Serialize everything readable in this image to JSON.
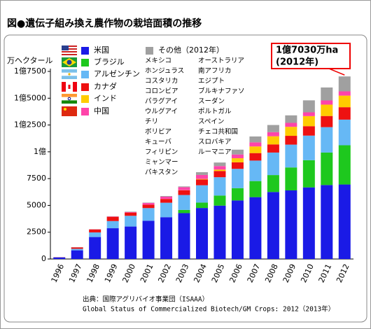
{
  "chart_data": {
    "type": "stacked-bar",
    "title": "図●遺伝子組み換え農作物の栽培面積の推移",
    "y_label": "万ヘクタール",
    "categories": [
      "1996",
      "1997",
      "1998",
      "1999",
      "2000",
      "2001",
      "2002",
      "2003",
      "2004",
      "2005",
      "2006",
      "2007",
      "2008",
      "2009",
      "2010",
      "2011",
      "2012"
    ],
    "series": [
      {
        "name": "米国",
        "color": "#1a1ae6",
        "values": [
          150,
          810,
          2050,
          2870,
          3030,
          3570,
          3900,
          4280,
          4760,
          4980,
          5460,
          5770,
          6250,
          6400,
          6680,
          6900,
          6950
        ]
      },
      {
        "name": "ブラジル",
        "color": "#1ec81e",
        "values": [
          0,
          0,
          0,
          0,
          0,
          0,
          0,
          300,
          500,
          940,
          1150,
          1500,
          1580,
          2140,
          2540,
          3030,
          3660
        ]
      },
      {
        "name": "アルゼンチン",
        "color": "#66b8f5",
        "values": [
          10,
          140,
          430,
          670,
          1000,
          1180,
          1350,
          1390,
          1620,
          1710,
          1800,
          1910,
          2100,
          2130,
          2290,
          2370,
          2390
        ]
      },
      {
        "name": "カナダ",
        "color": "#ee1111",
        "values": [
          14,
          130,
          280,
          400,
          300,
          320,
          350,
          440,
          540,
          580,
          610,
          700,
          760,
          820,
          880,
          1040,
          1160
        ]
      },
      {
        "name": "インド",
        "color": "#ffcc00",
        "values": [
          0,
          0,
          0,
          0,
          0,
          0,
          4,
          10,
          50,
          130,
          380,
          620,
          760,
          840,
          940,
          1060,
          1080
        ]
      },
      {
        "name": "中国",
        "color": "#ff44aa",
        "values": [
          1,
          3,
          10,
          30,
          50,
          150,
          210,
          280,
          370,
          330,
          350,
          380,
          380,
          370,
          350,
          390,
          400
        ]
      },
      {
        "name": "その他（2012年）",
        "color": "#a0a0a0",
        "values": [
          0,
          20,
          10,
          20,
          40,
          40,
          60,
          70,
          260,
          330,
          450,
          550,
          670,
          700,
          1120,
          1210,
          1390
        ]
      }
    ],
    "other_countries": [
      [
        "メキシコ",
        "ホンジュラス",
        "コスタリカ",
        "コロンビア",
        "パラグアイ",
        "ウルグアイ",
        "チリ",
        "ボリビア",
        "キューバ",
        "フィリピン",
        "ミャンマー",
        "パキスタン"
      ],
      [
        "オーストラリア",
        "南アフリカ",
        "エジプト",
        "ブルキナファソ",
        "スーダン",
        "ポルトガル",
        "スペイン",
        "チェコ共和国",
        "スロバキア",
        "ルーマニア"
      ]
    ],
    "ylim": [
      0,
      17500
    ],
    "yticks": [
      0,
      2500,
      5000,
      7500,
      {
        "value": 10000,
        "label": "1億"
      },
      {
        "value": 12500,
        "label": "1億2500"
      },
      {
        "value": 15000,
        "label": "1億5000"
      },
      {
        "value": 17500,
        "label": "1億7500"
      }
    ],
    "annotation": [
      "1億7030万ha",
      "(2012年)"
    ],
    "source": [
      "出典：国際アグリバイオ事業団（ISAAA）",
      "Global Status of Commercialized Biotech/GM Crops: 2012（2013年）"
    ]
  }
}
